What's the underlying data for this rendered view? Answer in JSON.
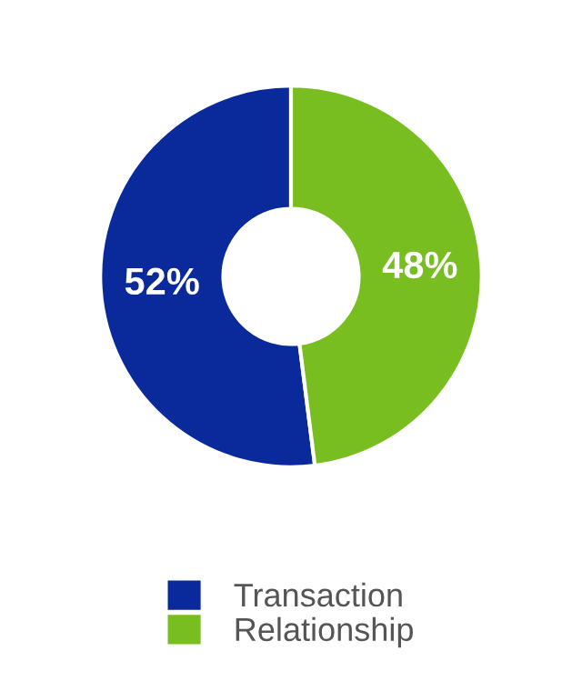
{
  "chart_data": {
    "type": "donut",
    "categories": [
      "Transaction",
      "Relationship"
    ],
    "values": [
      52,
      48
    ],
    "colors": [
      "#0a2a9c",
      "#78be21"
    ],
    "value_labels": [
      "52%",
      "48%"
    ],
    "legend": "bottom"
  }
}
